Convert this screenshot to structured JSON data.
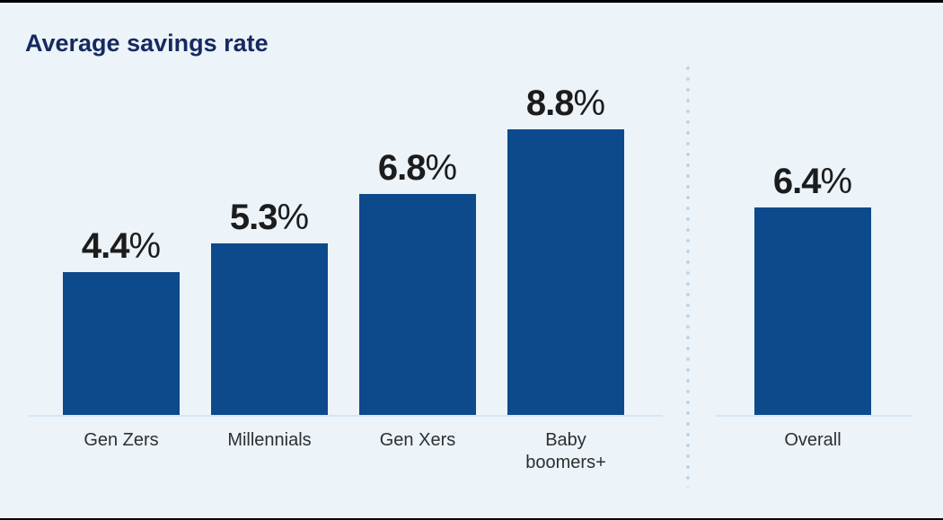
{
  "chart_data": {
    "type": "bar",
    "title": "Average savings rate",
    "unit": "%",
    "xlabel": "",
    "ylabel": "",
    "y_axis_visible": false,
    "gridlines": false,
    "value_labels_position": "above-bars",
    "categories": [
      "Gen Zers",
      "Millennials",
      "Gen Xers",
      "Baby boomers+",
      "Overall"
    ],
    "values": [
      4.4,
      5.3,
      6.8,
      8.8,
      6.4
    ],
    "bars": [
      {
        "category": "Gen Zers",
        "value": 4.4,
        "value_label": "4.4",
        "group": "generations"
      },
      {
        "category": "Millennials",
        "value": 5.3,
        "value_label": "5.3",
        "group": "generations"
      },
      {
        "category": "Gen Xers",
        "value": 6.8,
        "value_label": "6.8",
        "group": "generations"
      },
      {
        "category": "Baby\nboomers+",
        "value": 8.8,
        "value_label": "8.8",
        "group": "generations"
      },
      {
        "category": "Overall",
        "value": 6.4,
        "value_label": "6.4",
        "group": "overall"
      }
    ],
    "separator": "dotted vertical line between generations group and Overall",
    "colors": {
      "bar": "#0d4a8b",
      "title": "#16295f",
      "background": "#ecf3f9",
      "baseline": "#d6e7f3",
      "dotted_line": "#b3d4e9",
      "value_text": "#1c1c1c",
      "category_text": "#2d2f31"
    }
  }
}
